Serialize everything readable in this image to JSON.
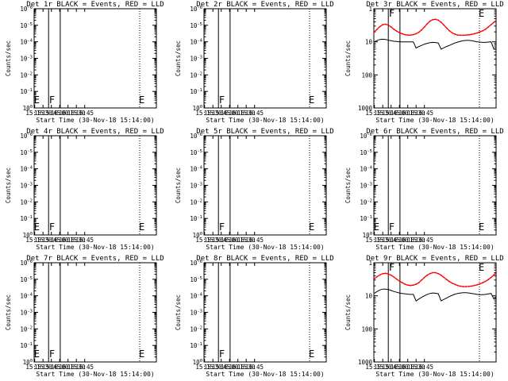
{
  "figure": {
    "background": "#ffffff",
    "axis_color": "#000000",
    "events_color": "#000000",
    "lld_color": "#ff0000"
  },
  "chart_data": [
    {
      "type": "line",
      "title": "Det 1r BLACK = Events, RED = LLD",
      "xlabel": "Start Time (30-Nov-18 15:14:00)",
      "ylabel": "Counts/sec",
      "xlim": [
        "15:14",
        "18:54"
      ],
      "xticks": [
        "15:15",
        "15:30",
        "15:45",
        "16:00",
        "16:15",
        "16:30",
        "16:45"
      ],
      "yscale": "log",
      "ylim": [
        1,
        1000000
      ],
      "yticks": [
        "10^0",
        "10^-1",
        "10^-2",
        "10^-3",
        "10^-4",
        "10^-5",
        "10^-6"
      ],
      "vlines": [
        {
          "x": "15:40",
          "style": "solid"
        },
        {
          "x": "16:01",
          "style": "solid"
        },
        {
          "x": "18:24",
          "style": "dotted"
        }
      ],
      "markers": [
        {
          "x": "15:15",
          "label": "E"
        },
        {
          "x": "15:41",
          "label": "F"
        },
        {
          "x": "18:24",
          "label": "E"
        }
      ],
      "series": []
    },
    {
      "type": "line",
      "title": "Det 2r BLACK = Events, RED = LLD",
      "xlabel": "Start Time (30-Nov-18 15:14:00)",
      "ylabel": "Counts/sec",
      "xlim": [
        "15:14",
        "18:54"
      ],
      "xticks": [
        "15:15",
        "15:30",
        "15:45",
        "16:00",
        "16:15",
        "16:30",
        "16:45"
      ],
      "yscale": "log",
      "ylim": [
        1,
        1000000
      ],
      "yticks": [
        "10^0",
        "10^-1",
        "10^-2",
        "10^-3",
        "10^-4",
        "10^-5",
        "10^-6"
      ],
      "vlines": [
        {
          "x": "15:40",
          "style": "solid"
        },
        {
          "x": "16:01",
          "style": "solid"
        },
        {
          "x": "18:24",
          "style": "dotted"
        }
      ],
      "markers": [
        {
          "x": "15:41",
          "label": "F"
        },
        {
          "x": "18:24",
          "label": "E"
        }
      ],
      "series": []
    },
    {
      "type": "line",
      "title": "Det 3r BLACK = Events, RED = LLD",
      "xlabel": "Start Time (30-Nov-18 15:14:00)",
      "ylabel": "Counts/sec",
      "xlim": [
        "15:14",
        "18:54"
      ],
      "xticks": [
        "15:15",
        "15:30",
        "15:45",
        "16:00",
        "16:15",
        "16:30",
        "16:45"
      ],
      "yscale": "log",
      "ylim": [
        1,
        1000
      ],
      "yticks": [
        "1000",
        "100",
        "10",
        "1"
      ],
      "vlines": [
        {
          "x": "15:40",
          "style": "solid"
        },
        {
          "x": "16:01",
          "style": "solid"
        },
        {
          "x": "18:24",
          "style": "dotted"
        }
      ],
      "markers": [
        {
          "x": "15:41",
          "label": "F"
        },
        {
          "x": "18:24",
          "label": "E"
        }
      ],
      "series": [
        {
          "color": "#ff0000",
          "x": [
            "15:15",
            "15:20",
            "15:25",
            "15:30",
            "15:35",
            "15:40",
            "15:45",
            "15:50",
            "15:55",
            "16:00",
            "16:05",
            "16:10",
            "16:15",
            "16:20",
            "16:25",
            "16:30",
            "16:35",
            "16:40",
            "16:45",
            "16:50",
            "16:55",
            "17:00",
            "17:05",
            "17:10",
            "17:15",
            "17:20",
            "17:25",
            "17:30",
            "17:35",
            "17:40",
            "17:45",
            "17:50",
            "17:55",
            "18:00",
            "18:05",
            "18:10",
            "18:15",
            "18:20",
            "18:25",
            "18:30",
            "18:35",
            "18:40",
            "18:45",
            "18:50",
            "18:53"
          ],
          "y": [
            200,
            240,
            290,
            330,
            340,
            320,
            280,
            240,
            210,
            190,
            175,
            165,
            160,
            160,
            165,
            175,
            195,
            230,
            280,
            350,
            420,
            470,
            480,
            450,
            390,
            320,
            260,
            215,
            185,
            170,
            160,
            158,
            158,
            160,
            163,
            168,
            175,
            185,
            200,
            215,
            240,
            280,
            330,
            390,
            420
          ]
        },
        {
          "color": "#000000",
          "x": [
            "15:15",
            "15:20",
            "15:25",
            "15:30",
            "15:35",
            "15:40",
            "15:45",
            "15:50",
            "15:55",
            "16:00",
            "16:05",
            "16:10",
            "16:15",
            "16:20",
            "16:25",
            "16:30",
            "16:35",
            "16:40",
            "16:45",
            "16:50",
            "16:55",
            "17:00",
            "17:05",
            "17:10",
            "17:15",
            "17:20",
            "17:25",
            "17:30",
            "17:35",
            "17:40",
            "17:45",
            "17:50",
            "17:55",
            "18:00",
            "18:05",
            "18:10",
            "18:15",
            "18:20",
            "18:25",
            "18:30",
            "18:35",
            "18:40",
            "18:45",
            "18:50",
            "18:53"
          ],
          "y": [
            100,
            110,
            118,
            120,
            118,
            112,
            108,
            104,
            102,
            100,
            100,
            100,
            100,
            100,
            100,
            65,
            72,
            78,
            85,
            90,
            94,
            96,
            95,
            92,
            60,
            66,
            72,
            78,
            85,
            92,
            98,
            104,
            108,
            110,
            110,
            108,
            104,
            100,
            98,
            96,
            96,
            98,
            100,
            60,
            62
          ]
        }
      ]
    },
    {
      "type": "line",
      "title": "Det 4r BLACK = Events, RED = LLD",
      "xlabel": "Start Time (30-Nov-18 15:14:00)",
      "ylabel": "Counts/sec",
      "xlim": [
        "15:14",
        "18:54"
      ],
      "xticks": [
        "15:15",
        "15:30",
        "15:45",
        "16:00",
        "16:15",
        "16:30",
        "16:45"
      ],
      "yscale": "log",
      "ylim": [
        1,
        1000000
      ],
      "yticks": [
        "10^0",
        "10^-1",
        "10^-2",
        "10^-3",
        "10^-4",
        "10^-5",
        "10^-6"
      ],
      "vlines": [
        {
          "x": "15:40",
          "style": "solid"
        },
        {
          "x": "16:01",
          "style": "solid"
        },
        {
          "x": "18:24",
          "style": "dotted"
        }
      ],
      "markers": [
        {
          "x": "15:15",
          "label": "E"
        },
        {
          "x": "15:41",
          "label": "F"
        },
        {
          "x": "18:24",
          "label": "E"
        }
      ],
      "series": []
    },
    {
      "type": "line",
      "title": "Det 5r BLACK = Events, RED = LLD",
      "xlabel": "Start Time (30-Nov-18 15:14:00)",
      "ylabel": "Counts/sec",
      "xlim": [
        "15:14",
        "18:54"
      ],
      "xticks": [
        "15:15",
        "15:30",
        "15:45",
        "16:00",
        "16:15",
        "16:30",
        "16:45"
      ],
      "yscale": "log",
      "ylim": [
        1,
        1000000
      ],
      "yticks": [
        "10^0",
        "10^-1",
        "10^-2",
        "10^-3",
        "10^-4",
        "10^-5",
        "10^-6"
      ],
      "vlines": [
        {
          "x": "15:40",
          "style": "solid"
        },
        {
          "x": "16:01",
          "style": "solid"
        },
        {
          "x": "18:24",
          "style": "dotted"
        }
      ],
      "markers": [
        {
          "x": "15:41",
          "label": "F"
        },
        {
          "x": "18:24",
          "label": "E"
        }
      ],
      "series": []
    },
    {
      "type": "line",
      "title": "Det 6r BLACK = Events, RED = LLD",
      "xlabel": "Start Time (30-Nov-18 15:14:00)",
      "ylabel": "Counts/sec",
      "xlim": [
        "15:14",
        "18:54"
      ],
      "xticks": [
        "15:15",
        "15:30",
        "15:45",
        "16:00",
        "16:15",
        "16:30",
        "16:45"
      ],
      "yscale": "log",
      "ylim": [
        1,
        1000000
      ],
      "yticks": [
        "10^0",
        "10^-1",
        "10^-2",
        "10^-3",
        "10^-4",
        "10^-5",
        "10^-6"
      ],
      "vlines": [
        {
          "x": "15:40",
          "style": "solid"
        },
        {
          "x": "16:01",
          "style": "solid"
        },
        {
          "x": "18:24",
          "style": "dotted"
        }
      ],
      "markers": [
        {
          "x": "15:15",
          "label": "E"
        },
        {
          "x": "15:41",
          "label": "F"
        },
        {
          "x": "18:24",
          "label": "E"
        }
      ],
      "series": []
    },
    {
      "type": "line",
      "title": "Det 7r BLACK = Events, RED = LLD",
      "xlabel": "Start Time (30-Nov-18 15:14:00)",
      "ylabel": "Counts/sec",
      "xlim": [
        "15:14",
        "18:54"
      ],
      "xticks": [
        "15:15",
        "15:30",
        "15:45",
        "16:00",
        "16:15",
        "16:30",
        "16:45"
      ],
      "yscale": "log",
      "ylim": [
        1,
        1000000
      ],
      "yticks": [
        "10^0",
        "10^-1",
        "10^-2",
        "10^-3",
        "10^-4",
        "10^-5",
        "10^-6"
      ],
      "vlines": [
        {
          "x": "15:40",
          "style": "solid"
        },
        {
          "x": "16:01",
          "style": "solid"
        },
        {
          "x": "18:24",
          "style": "dotted"
        }
      ],
      "markers": [
        {
          "x": "15:15",
          "label": "E"
        },
        {
          "x": "15:41",
          "label": "F"
        },
        {
          "x": "18:24",
          "label": "E"
        }
      ],
      "series": []
    },
    {
      "type": "line",
      "title": "Det 8r BLACK = Events, RED = LLD",
      "xlabel": "Start Time (30-Nov-18 15:14:00)",
      "ylabel": "Counts/sec",
      "xlim": [
        "15:14",
        "18:54"
      ],
      "xticks": [
        "15:15",
        "15:30",
        "15:45",
        "16:00",
        "16:15",
        "16:30",
        "16:45"
      ],
      "yscale": "log",
      "ylim": [
        1,
        1000000
      ],
      "yticks": [
        "10^0",
        "10^-1",
        "10^-2",
        "10^-3",
        "10^-4",
        "10^-5",
        "10^-6"
      ],
      "vlines": [
        {
          "x": "15:40",
          "style": "solid"
        },
        {
          "x": "16:01",
          "style": "solid"
        },
        {
          "x": "18:24",
          "style": "dotted"
        }
      ],
      "markers": [
        {
          "x": "15:41",
          "label": "F"
        },
        {
          "x": "18:24",
          "label": "E"
        }
      ],
      "series": []
    },
    {
      "type": "line",
      "title": "Det 9r BLACK = Events, RED = LLD",
      "xlabel": "Start Time (30-Nov-18 15:14:00)",
      "ylabel": "Counts/sec",
      "xlim": [
        "15:14",
        "18:54"
      ],
      "xticks": [
        "15:15",
        "15:30",
        "15:45",
        "16:00",
        "16:15",
        "16:30",
        "16:45"
      ],
      "yscale": "log",
      "ylim": [
        1,
        1000
      ],
      "yticks": [
        "1000",
        "100",
        "10",
        "1"
      ],
      "vlines": [
        {
          "x": "15:40",
          "style": "solid"
        },
        {
          "x": "16:01",
          "style": "solid"
        },
        {
          "x": "18:24",
          "style": "dotted"
        }
      ],
      "markers": [
        {
          "x": "15:41",
          "label": "F"
        },
        {
          "x": "18:24",
          "label": "E"
        }
      ],
      "series": [
        {
          "color": "#ff0000",
          "x": [
            "15:15",
            "15:20",
            "15:25",
            "15:30",
            "15:35",
            "15:40",
            "15:45",
            "15:50",
            "15:55",
            "16:00",
            "16:05",
            "16:10",
            "16:15",
            "16:20",
            "16:25",
            "16:30",
            "16:35",
            "16:40",
            "16:45",
            "16:50",
            "16:55",
            "17:00",
            "17:05",
            "17:10",
            "17:15",
            "17:20",
            "17:25",
            "17:30",
            "17:35",
            "17:40",
            "17:45",
            "17:50",
            "17:55",
            "18:00",
            "18:05",
            "18:10",
            "18:15",
            "18:20",
            "18:25",
            "18:30",
            "18:35",
            "18:40",
            "18:45",
            "18:50",
            "18:53"
          ],
          "y": [
            330,
            380,
            430,
            470,
            480,
            460,
            420,
            370,
            320,
            280,
            250,
            225,
            210,
            205,
            210,
            225,
            250,
            300,
            360,
            420,
            470,
            500,
            500,
            470,
            420,
            360,
            310,
            270,
            240,
            220,
            205,
            195,
            190,
            190,
            192,
            197,
            205,
            215,
            230,
            250,
            275,
            310,
            360,
            430,
            470
          ]
        },
        {
          "color": "#000000",
          "x": [
            "15:15",
            "15:20",
            "15:25",
            "15:30",
            "15:35",
            "15:40",
            "15:45",
            "15:50",
            "15:55",
            "16:00",
            "16:05",
            "16:10",
            "16:15",
            "16:20",
            "16:25",
            "16:30",
            "16:35",
            "16:40",
            "16:45",
            "16:50",
            "16:55",
            "17:00",
            "17:05",
            "17:10",
            "17:15",
            "17:20",
            "17:25",
            "17:30",
            "17:35",
            "17:40",
            "17:45",
            "17:50",
            "17:55",
            "18:00",
            "18:05",
            "18:10",
            "18:15",
            "18:20",
            "18:25",
            "18:30",
            "18:35",
            "18:40",
            "18:45",
            "18:50",
            "18:53"
          ],
          "y": [
            120,
            135,
            150,
            160,
            160,
            155,
            145,
            135,
            128,
            122,
            118,
            115,
            112,
            110,
            110,
            70,
            80,
            90,
            100,
            110,
            118,
            122,
            120,
            115,
            70,
            78,
            86,
            95,
            104,
            112,
            118,
            122,
            124,
            124,
            122,
            118,
            114,
            110,
            108,
            108,
            110,
            114,
            118,
            80,
            85
          ]
        }
      ]
    }
  ]
}
